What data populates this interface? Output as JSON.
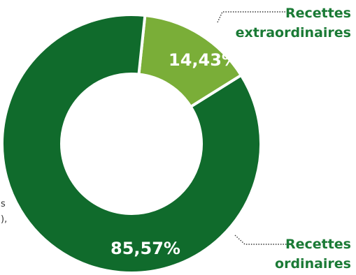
{
  "chart_data": {
    "type": "pie",
    "donut": true,
    "categories": [
      "Recettes ordinaires",
      "Recettes extraordinaires"
    ],
    "values": [
      85.57,
      14.43
    ],
    "value_labels": [
      "85,57%",
      "14,43%"
    ],
    "legend_lines": [
      [
        "Recettes",
        "ordinaires"
      ],
      [
        "Recettes",
        "extraordinaires"
      ]
    ],
    "colors": [
      "#106b2c",
      "#7aae38"
    ],
    "label_color": "#1a7a35",
    "start_angle_deg": 6,
    "title": "",
    "clipped_left_text": [
      "s",
      "),"
    ]
  }
}
